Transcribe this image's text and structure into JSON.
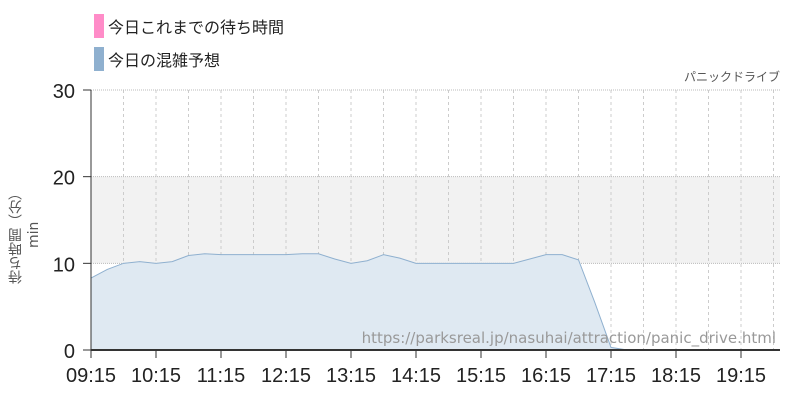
{
  "legend": [
    {
      "label": "今日これまでの待ち時間",
      "color": "#ff8cc8"
    },
    {
      "label": "今日の混雑予想",
      "color": "#8fb0cf"
    }
  ],
  "chart_data": {
    "type": "area",
    "title": "パニックドライブ",
    "ylabel": "待ち時間（分）min",
    "watermark": "https://parksreal.jp/nasuhai/attraction/panic_drive.html",
    "ylim": [
      0,
      30
    ],
    "yticks": [
      0,
      10,
      20,
      30
    ],
    "xlim": [
      "09:15",
      "19:51"
    ],
    "xticks": [
      "09:15",
      "10:15",
      "11:15",
      "12:15",
      "13:15",
      "14:15",
      "15:15",
      "16:15",
      "17:15",
      "18:15",
      "19:15"
    ],
    "highlight_band": [
      10,
      20
    ],
    "grid": true,
    "series": [
      {
        "name": "今日の混雑予想",
        "color": "#8fb0cf",
        "fill": "#dfe9f2",
        "x": [
          "09:15",
          "09:30",
          "09:45",
          "10:00",
          "10:15",
          "10:30",
          "10:45",
          "11:00",
          "11:15",
          "11:30",
          "11:45",
          "12:00",
          "12:15",
          "12:30",
          "12:45",
          "13:00",
          "13:15",
          "13:30",
          "13:45",
          "14:00",
          "14:15",
          "14:30",
          "14:45",
          "15:00",
          "15:15",
          "15:30",
          "15:45",
          "16:00",
          "16:15",
          "16:30",
          "16:45",
          "17:00",
          "17:15",
          "17:30",
          "18:00",
          "18:30",
          "19:00",
          "19:30",
          "19:51"
        ],
        "values": [
          8.3,
          9.3,
          10.0,
          10.2,
          10.0,
          10.2,
          10.9,
          11.1,
          11.0,
          11.0,
          11.0,
          11.0,
          11.0,
          11.1,
          11.1,
          10.5,
          10.0,
          10.3,
          11.0,
          10.6,
          10.0,
          10.0,
          10.0,
          10.0,
          10.0,
          10.0,
          10.0,
          10.5,
          11.0,
          11.0,
          10.4,
          5.5,
          0.3,
          0,
          0,
          0,
          0,
          0,
          0
        ]
      }
    ]
  }
}
